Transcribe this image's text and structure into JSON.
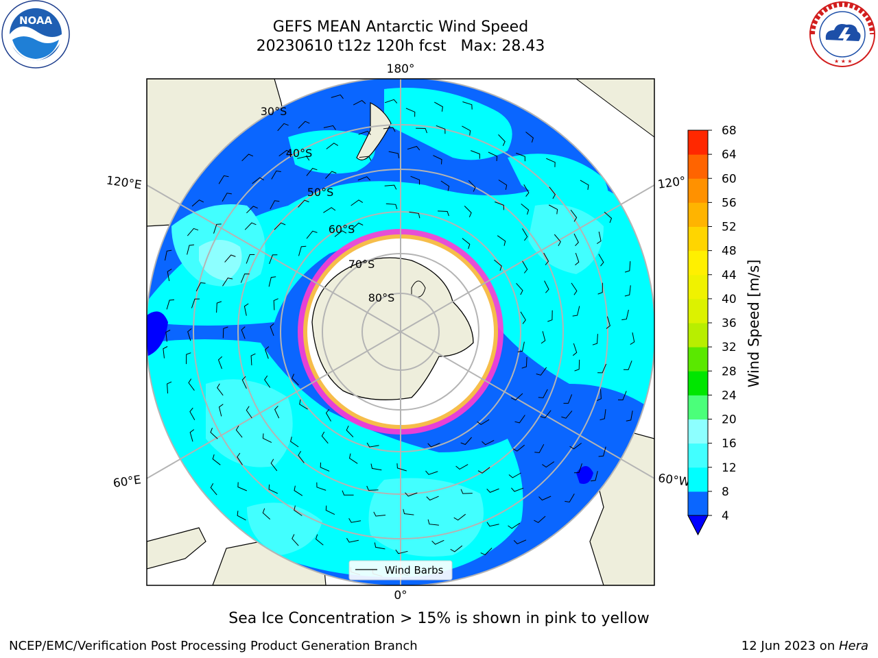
{
  "title": {
    "line1": "GEFS MEAN Antarctic Wind Speed",
    "line2": "20230610 t12z 120h fcst   Max: 28.43"
  },
  "logos": {
    "left": {
      "name": "noaa-logo",
      "text": "NOAA",
      "ring_text": "NATIONAL OCEANIC AND ATMOSPHERIC ADMINISTRATION · U.S. DEPARTMENT OF COMMERCE"
    },
    "right": {
      "name": "nws-logo",
      "ring_text": "NATIONAL WEATHER SERVICE"
    }
  },
  "map": {
    "projection": "south-polar-stereographic",
    "longitude_labels": {
      "top": "180°",
      "bottom": "0°",
      "upper_left": "120°E",
      "lower_left": "60°E",
      "upper_right": "120°",
      "lower_right": "60°W"
    },
    "latitude_labels": [
      "30°S",
      "40°S",
      "50°S",
      "60°S",
      "70°S",
      "80°S"
    ],
    "legend_label": "Wind Barbs",
    "colors": {
      "land": "#eeeedc",
      "sea_ice_white": "#ffffff",
      "sea_ice_pink": "#ff3cd2",
      "sea_ice_yellow": "#f6bd4a",
      "grid": "#b4b4b4"
    }
  },
  "colorbar": {
    "label": "Wind Speed [m/s]",
    "ticks": [
      "68",
      "64",
      "60",
      "56",
      "52",
      "48",
      "44",
      "40",
      "36",
      "32",
      "28",
      "24",
      "20",
      "16",
      "12",
      "8",
      "4"
    ],
    "colors_low_to_high": [
      "#0a66ff",
      "#00ffff",
      "#42ffff",
      "#8dffff",
      "#4bff7a",
      "#00e600",
      "#5ae800",
      "#b8ee00",
      "#dcf200",
      "#f0f200",
      "#fff000",
      "#ffd500",
      "#ffb400",
      "#ff9100",
      "#ff6400",
      "#ff2800"
    ],
    "under_color": "#0000ff"
  },
  "caption": "Sea Ice Concentration > 15% is shown in pink to yellow",
  "footer": {
    "left": "NCEP/EMC/Verification Post Processing Product Generation Branch",
    "right_date": "12 Jun 2023 on ",
    "right_machine": "Hera"
  }
}
